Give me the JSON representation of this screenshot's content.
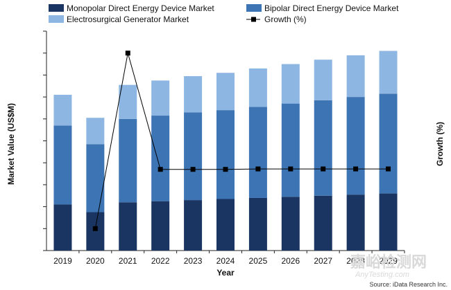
{
  "chart_data": {
    "type": "bar",
    "stacked": true,
    "categories": [
      "2019",
      "2020",
      "2021",
      "2022",
      "2023",
      "2024",
      "2025",
      "2026",
      "2027",
      "2028",
      "2029"
    ],
    "series": [
      {
        "name": "Monopolar Direct Energy Device  Market",
        "color": "#1a3561",
        "values": [
          2.1,
          1.75,
          2.2,
          2.25,
          2.3,
          2.35,
          2.4,
          2.45,
          2.5,
          2.55,
          2.6
        ]
      },
      {
        "name": "Bipolar Direct Energy Device  Market",
        "color": "#3d74b4",
        "values": [
          3.6,
          3.1,
          3.8,
          3.9,
          4.0,
          4.05,
          4.15,
          4.25,
          4.35,
          4.45,
          4.55
        ]
      },
      {
        "name": "Electrosurgical Generator  Market",
        "color": "#8eb6e3",
        "values": [
          1.4,
          1.2,
          1.55,
          1.6,
          1.65,
          1.7,
          1.75,
          1.8,
          1.85,
          1.9,
          1.95
        ]
      },
      {
        "name": "Growth (%)",
        "type": "line",
        "axis": "right",
        "color": "#000000",
        "marker": "square",
        "values": [
          null,
          -10,
          30,
          3.5,
          3.5,
          3.5,
          3.6,
          3.6,
          3.6,
          3.6,
          3.6
        ]
      }
    ],
    "xlabel": "Year",
    "ylabel": "Market Value (US$M)",
    "y2label": "Growth (%)",
    "ylim": [
      0,
      10
    ],
    "y2lim": [
      -15,
      35
    ],
    "tick_labels_y": "hidden",
    "grid": false,
    "legend": "top"
  },
  "footer": {
    "source": "Source: iData Research Inc."
  },
  "watermark": {
    "main": "嘉峪检测网",
    "sub": "AnyTesting.com"
  }
}
